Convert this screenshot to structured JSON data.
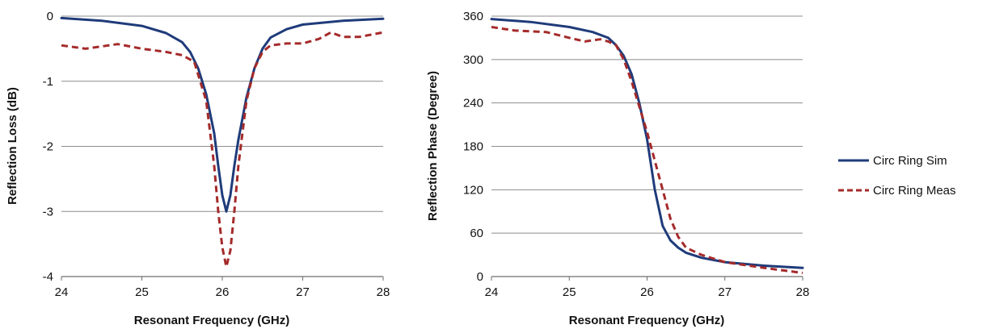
{
  "chart_data": [
    {
      "type": "line",
      "xlabel": "Resonant Frequency (GHz)",
      "ylabel": "Reflection Loss (dB)",
      "xlim": [
        24,
        28
      ],
      "ylim": [
        -4,
        0
      ],
      "xticks": [
        "24",
        "25",
        "26",
        "27",
        "28"
      ],
      "yticks": [
        "0",
        "-1",
        "-2",
        "-3",
        "-4"
      ],
      "grid": "horizontal",
      "series": [
        {
          "name": "Circ Ring Sim",
          "style": "solid",
          "color": "#1f3b7a",
          "x": [
            24.0,
            24.5,
            25.0,
            25.3,
            25.5,
            25.6,
            25.7,
            25.8,
            25.9,
            25.95,
            26.0,
            26.05,
            26.1,
            26.15,
            26.2,
            26.3,
            26.4,
            26.5,
            26.6,
            26.8,
            27.0,
            27.5,
            28.0
          ],
          "y": [
            -0.03,
            -0.07,
            -0.15,
            -0.26,
            -0.4,
            -0.55,
            -0.8,
            -1.2,
            -1.8,
            -2.3,
            -2.75,
            -3.0,
            -2.75,
            -2.3,
            -1.9,
            -1.25,
            -0.8,
            -0.5,
            -0.33,
            -0.2,
            -0.13,
            -0.07,
            -0.04
          ]
        },
        {
          "name": "Circ Ring Meas",
          "style": "dashed",
          "color": "#a52a2a",
          "x": [
            24.0,
            24.3,
            24.7,
            25.0,
            25.3,
            25.5,
            25.65,
            25.8,
            25.9,
            25.95,
            26.0,
            26.05,
            26.1,
            26.15,
            26.2,
            26.3,
            26.4,
            26.5,
            26.6,
            26.8,
            27.0,
            27.2,
            27.35,
            27.5,
            27.7,
            28.0
          ],
          "y": [
            -0.45,
            -0.5,
            -0.43,
            -0.5,
            -0.55,
            -0.6,
            -0.7,
            -1.3,
            -2.3,
            -3.0,
            -3.55,
            -3.85,
            -3.6,
            -3.0,
            -2.3,
            -1.3,
            -0.8,
            -0.55,
            -0.45,
            -0.42,
            -0.42,
            -0.35,
            -0.25,
            -0.32,
            -0.32,
            -0.25
          ]
        }
      ]
    },
    {
      "type": "line",
      "xlabel": "Resonant Frequency (GHz)",
      "ylabel": "Reflection Phase (Degree)",
      "xlim": [
        24,
        28
      ],
      "ylim": [
        0,
        360
      ],
      "xticks": [
        "24",
        "25",
        "26",
        "27",
        "28"
      ],
      "yticks": [
        "360",
        "300",
        "240",
        "180",
        "120",
        "60",
        "0"
      ],
      "grid": "horizontal",
      "legend_position": "right",
      "series": [
        {
          "name": "Circ Ring Sim",
          "style": "solid",
          "color": "#1f3b7a",
          "x": [
            24.0,
            24.5,
            25.0,
            25.3,
            25.5,
            25.6,
            25.7,
            25.8,
            25.9,
            26.0,
            26.1,
            26.2,
            26.3,
            26.4,
            26.5,
            26.7,
            27.0,
            27.5,
            28.0
          ],
          "y": [
            356,
            352,
            345,
            338,
            330,
            320,
            305,
            280,
            240,
            190,
            120,
            70,
            50,
            40,
            33,
            26,
            20,
            15,
            12
          ]
        },
        {
          "name": "Circ Ring Meas",
          "style": "dashed",
          "color": "#a52a2a",
          "x": [
            24.0,
            24.3,
            24.7,
            25.0,
            25.2,
            25.4,
            25.5,
            25.6,
            25.7,
            25.8,
            25.9,
            26.0,
            26.1,
            26.2,
            26.3,
            26.4,
            26.5,
            26.7,
            27.0,
            27.5,
            28.0
          ],
          "y": [
            345,
            340,
            338,
            330,
            325,
            328,
            325,
            320,
            300,
            270,
            235,
            200,
            160,
            120,
            80,
            55,
            40,
            30,
            20,
            12,
            5
          ]
        }
      ]
    }
  ],
  "legend": {
    "items": [
      "Circ Ring Sim",
      "Circ Ring Meas"
    ]
  }
}
